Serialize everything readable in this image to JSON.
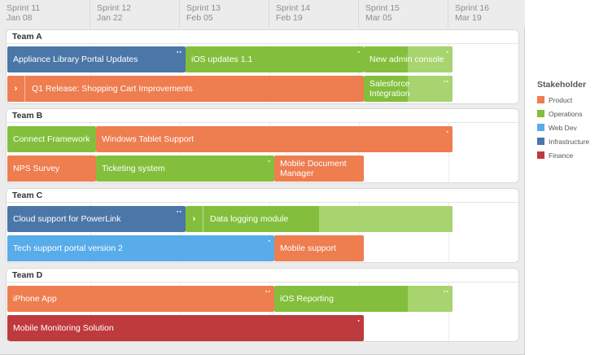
{
  "sprints": [
    {
      "name": "Sprint 11",
      "date": "Jan 08"
    },
    {
      "name": "Sprint 12",
      "date": "Jan 22"
    },
    {
      "name": "Sprint 13",
      "date": "Feb 05"
    },
    {
      "name": "Sprint 14",
      "date": "Feb 19"
    },
    {
      "name": "Sprint 15",
      "date": "Mar 05"
    },
    {
      "name": "Sprint 16",
      "date": "Mar 19"
    }
  ],
  "teams": [
    {
      "name": "Team A",
      "rows": [
        [
          {
            "label": "Appliance Library Portal Updates",
            "stakeholder": "Infrastructure"
          },
          {
            "label": "iOS updates 1.1",
            "stakeholder": "Operations"
          },
          {
            "label": "New admin console",
            "stakeholder": "Operations"
          }
        ],
        [
          {
            "label": "Q1 Release: Shopping Cart Improvements",
            "stakeholder": "Product",
            "expand": true
          },
          {
            "label": "Salesforce Integration",
            "stakeholder": "Operations"
          }
        ]
      ]
    },
    {
      "name": "Team B",
      "rows": [
        [
          {
            "label": "Connect Framework",
            "stakeholder": "Operations"
          },
          {
            "label": "Windows Tablet Support",
            "stakeholder": "Product"
          }
        ],
        [
          {
            "label": "NPS Survey",
            "stakeholder": "Product"
          },
          {
            "label": "Ticketing system",
            "stakeholder": "Operations"
          },
          {
            "label": "Mobile Document Manager",
            "stakeholder": "Product"
          }
        ]
      ]
    },
    {
      "name": "Team C",
      "rows": [
        [
          {
            "label": "Cloud support for PowerLink",
            "stakeholder": "Infrastructure"
          },
          {
            "label": "Data logging module",
            "stakeholder": "Operations",
            "expand": true
          }
        ],
        [
          {
            "label": "Tech support portal version 2",
            "stakeholder": "Web Dev"
          },
          {
            "label": "Mobile support",
            "stakeholder": "Product"
          }
        ]
      ]
    },
    {
      "name": "Team D",
      "rows": [
        [
          {
            "label": "iPhone App",
            "stakeholder": "Product"
          },
          {
            "label": "iOS Reporting",
            "stakeholder": "Operations"
          }
        ],
        [
          {
            "label": "Mobile Monitoring Solution",
            "stakeholder": "Finance"
          }
        ]
      ]
    }
  ],
  "legend": {
    "title": "Stakeholder",
    "items": [
      {
        "label": "Product",
        "color": "#ee7d50"
      },
      {
        "label": "Operations",
        "color": "#83bf3c"
      },
      {
        "label": "Web Dev",
        "color": "#58acea"
      },
      {
        "label": "Infrastructure",
        "color": "#4b76a8"
      },
      {
        "label": "Finance",
        "color": "#bf3a3d"
      }
    ]
  },
  "icons": {
    "expand": "chevron-right-icon",
    "bar_marker": "drag-handle-icon"
  }
}
